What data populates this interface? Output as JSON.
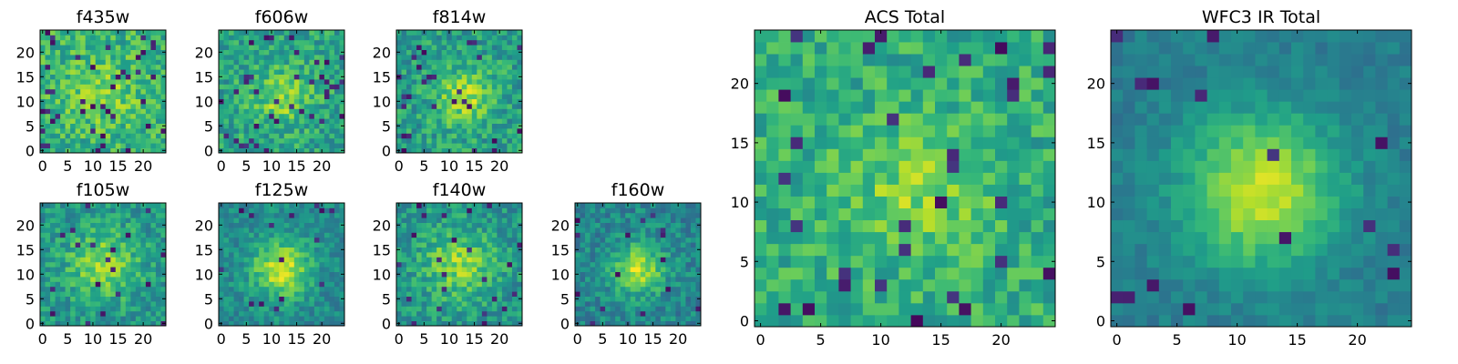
{
  "colormap": "viridis",
  "colormap_stops": [
    "#440154",
    "#482878",
    "#3e4989",
    "#31688e",
    "#26828e",
    "#1f9e89",
    "#35b779",
    "#6ece58",
    "#b5de2b",
    "#fde725"
  ],
  "chart_data": [
    {
      "type": "heatmap",
      "title": "f435w",
      "rows": 25,
      "cols": 25,
      "xlim": [
        0,
        25
      ],
      "ylim": [
        0,
        25
      ],
      "xticks": [
        0,
        5,
        10,
        15,
        20
      ],
      "yticks": [
        0,
        5,
        10,
        15,
        20
      ],
      "seed": 11,
      "center": [
        12,
        12
      ],
      "peak": 0.15,
      "sigma": 5,
      "noise": 0.35,
      "base": 0.64,
      "outlier_rate": 0.06
    },
    {
      "type": "heatmap",
      "title": "f606w",
      "rows": 25,
      "cols": 25,
      "xlim": [
        0,
        25
      ],
      "ylim": [
        0,
        25
      ],
      "xticks": [
        0,
        5,
        10,
        15,
        20
      ],
      "yticks": [
        0,
        5,
        10,
        15,
        20
      ],
      "seed": 23,
      "center": [
        12,
        11
      ],
      "peak": 0.25,
      "sigma": 4,
      "noise": 0.33,
      "base": 0.58,
      "outlier_rate": 0.05
    },
    {
      "type": "heatmap",
      "title": "f814w",
      "rows": 25,
      "cols": 25,
      "xlim": [
        0,
        25
      ],
      "ylim": [
        0,
        25
      ],
      "xticks": [
        0,
        5,
        10,
        15,
        20
      ],
      "yticks": [
        0,
        5,
        10,
        15,
        20
      ],
      "seed": 37,
      "center": [
        13,
        11
      ],
      "peak": 0.3,
      "sigma": 4,
      "noise": 0.33,
      "base": 0.56,
      "outlier_rate": 0.05
    },
    {
      "type": "heatmap",
      "title": "f105w",
      "rows": 25,
      "cols": 25,
      "xlim": [
        0,
        25
      ],
      "ylim": [
        0,
        25
      ],
      "xticks": [
        0,
        5,
        10,
        15,
        20
      ],
      "yticks": [
        0,
        5,
        10,
        15,
        20
      ],
      "seed": 41,
      "center": [
        12,
        12
      ],
      "peak": 0.3,
      "sigma": 5,
      "noise": 0.3,
      "base": 0.52,
      "outlier_rate": 0.03
    },
    {
      "type": "heatmap",
      "title": "f125w",
      "rows": 25,
      "cols": 25,
      "xlim": [
        0,
        25
      ],
      "ylim": [
        0,
        25
      ],
      "xticks": [
        0,
        5,
        10,
        15,
        20
      ],
      "yticks": [
        0,
        5,
        10,
        15,
        20
      ],
      "seed": 53,
      "center": [
        12,
        11
      ],
      "peak": 0.45,
      "sigma": 4,
      "noise": 0.25,
      "base": 0.48,
      "outlier_rate": 0.03
    },
    {
      "type": "heatmap",
      "title": "f140w",
      "rows": 25,
      "cols": 25,
      "xlim": [
        0,
        25
      ],
      "ylim": [
        0,
        25
      ],
      "xticks": [
        0,
        5,
        10,
        15,
        20
      ],
      "yticks": [
        0,
        5,
        10,
        15,
        20
      ],
      "seed": 67,
      "center": [
        12,
        12
      ],
      "peak": 0.3,
      "sigma": 5,
      "noise": 0.3,
      "base": 0.52,
      "outlier_rate": 0.03
    },
    {
      "type": "heatmap",
      "title": "f160w",
      "rows": 25,
      "cols": 25,
      "xlim": [
        0,
        25
      ],
      "ylim": [
        0,
        25
      ],
      "xticks": [
        0,
        5,
        10,
        15,
        20
      ],
      "yticks": [
        0,
        5,
        10,
        15,
        20
      ],
      "seed": 79,
      "center": [
        12,
        11
      ],
      "peak": 0.45,
      "sigma": 3.5,
      "noise": 0.28,
      "base": 0.46,
      "outlier_rate": 0.03
    },
    {
      "type": "heatmap",
      "title": "ACS Total",
      "rows": 25,
      "cols": 25,
      "xlim": [
        0,
        25
      ],
      "ylim": [
        0,
        25
      ],
      "xticks": [
        0,
        5,
        10,
        15,
        20
      ],
      "yticks": [
        0,
        5,
        10,
        15,
        20
      ],
      "seed": 97,
      "center": [
        13,
        11
      ],
      "peak": 0.2,
      "sigma": 4,
      "noise": 0.3,
      "base": 0.62,
      "outlier_rate": 0.05
    },
    {
      "type": "heatmap",
      "title": "WFC3 IR Total",
      "rows": 25,
      "cols": 25,
      "xlim": [
        0,
        25
      ],
      "ylim": [
        0,
        25
      ],
      "xticks": [
        0,
        5,
        10,
        15,
        20
      ],
      "yticks": [
        0,
        5,
        10,
        15,
        20
      ],
      "seed": 113,
      "center": [
        12,
        11
      ],
      "peak": 0.5,
      "sigma": 4.5,
      "noise": 0.14,
      "base": 0.42,
      "outlier_rate": 0.02
    }
  ]
}
